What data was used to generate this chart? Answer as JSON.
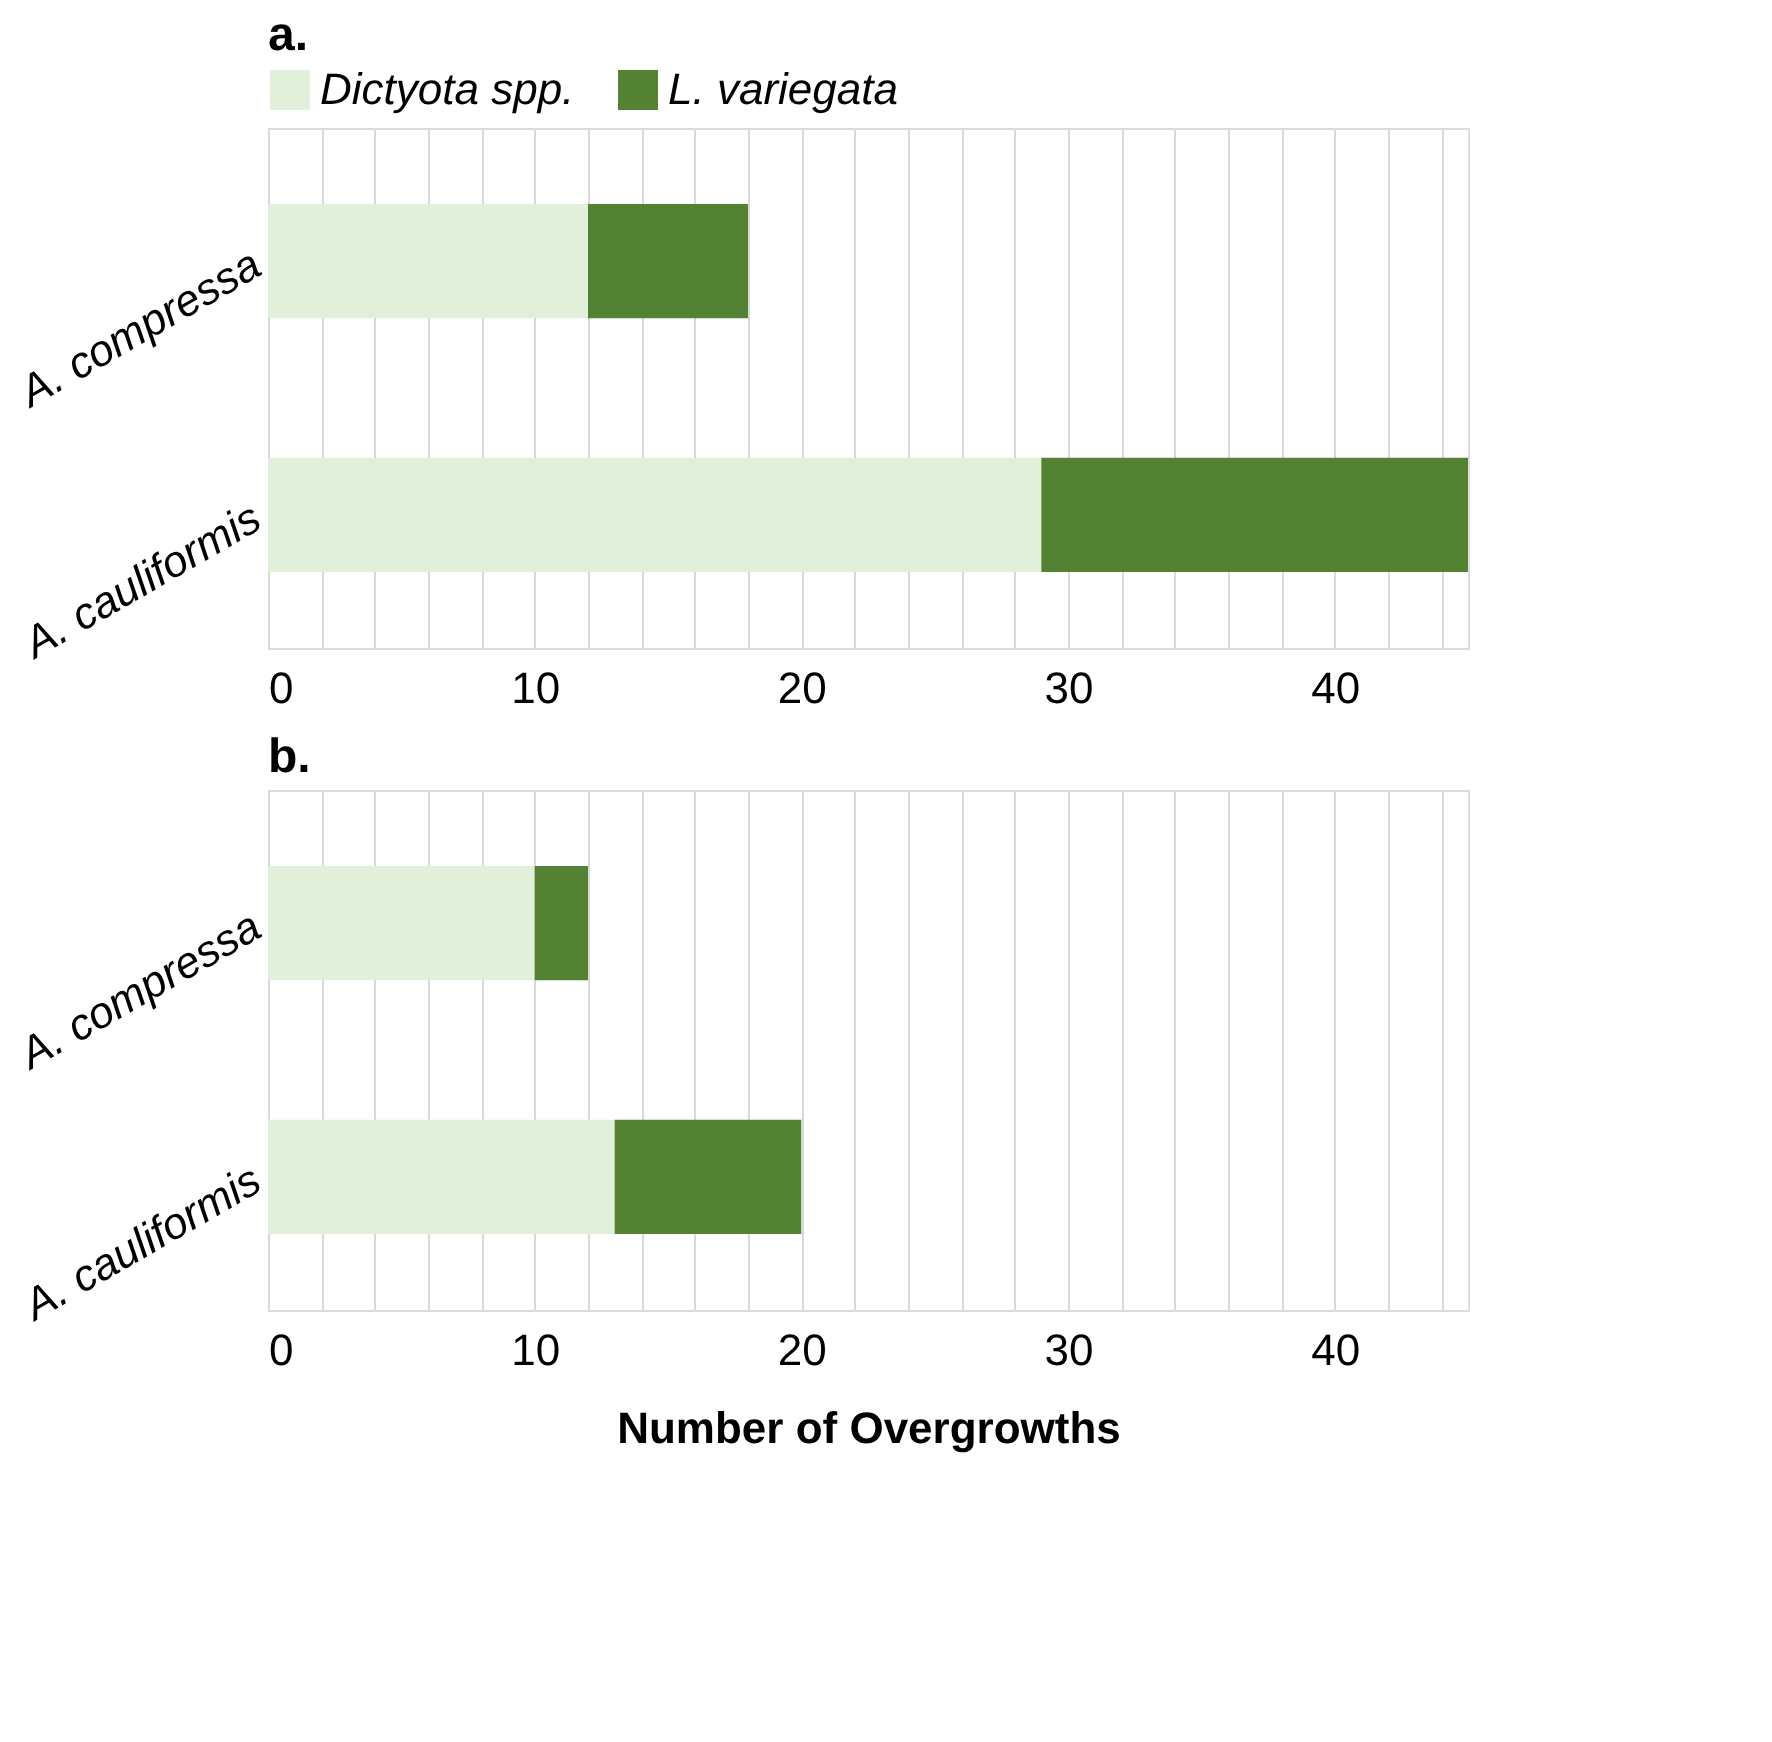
{
  "chart_data": [
    {
      "type": "bar",
      "orientation": "horizontal",
      "stacked": true,
      "title": "a.",
      "categories": [
        "A. compressa",
        "A. cauliformis"
      ],
      "series": [
        {
          "name": "Dictyota spp.",
          "color": "#e2efda",
          "values": [
            12,
            29
          ]
        },
        {
          "name": "L. variegata",
          "color": "#548235",
          "values": [
            6,
            16
          ]
        }
      ],
      "xlim": [
        0,
        45
      ],
      "xticks": [
        0,
        {
          "value": 2,
          "label": null
        },
        {
          "value": 4,
          "label": null
        },
        {
          "value": 6,
          "label": null
        },
        {
          "value": 8,
          "label": null
        },
        10,
        {
          "value": 12,
          "label": null
        },
        {
          "value": 14,
          "label": null
        },
        {
          "value": 16,
          "label": null
        },
        {
          "value": 18,
          "label": null
        },
        20,
        {
          "value": 22,
          "label": null
        },
        {
          "value": 24,
          "label": null
        },
        {
          "value": 26,
          "label": null
        },
        {
          "value": 28,
          "label": null
        },
        30,
        {
          "value": 32,
          "label": null
        },
        {
          "value": 34,
          "label": null
        },
        {
          "value": 36,
          "label": null
        },
        {
          "value": 38,
          "label": null
        },
        40,
        {
          "value": 42,
          "label": null
        },
        {
          "value": 44,
          "label": null
        }
      ],
      "grid": "x",
      "legend": "top"
    },
    {
      "type": "bar",
      "orientation": "horizontal",
      "stacked": true,
      "title": "b.",
      "xlabel": "Number of Overgrowths",
      "categories": [
        "A. compressa",
        "A. cauliformis"
      ],
      "series": [
        {
          "color": "#e2efda",
          "values": [
            10,
            13
          ]
        },
        {
          "color": "#548235",
          "values": [
            2,
            7
          ]
        }
      ],
      "xlim": [
        0,
        45
      ],
      "xticks": [
        0,
        {
          "value": 2,
          "label": null
        },
        {
          "value": 4,
          "label": null
        },
        {
          "value": 6,
          "label": null
        },
        {
          "value": 8,
          "label": null
        },
        10,
        {
          "value": 12,
          "label": null
        },
        {
          "value": 14,
          "label": null
        },
        {
          "value": 16,
          "label": null
        },
        {
          "value": 18,
          "label": null
        },
        20,
        {
          "value": 22,
          "label": null
        },
        {
          "value": 24,
          "label": null
        },
        {
          "value": 26,
          "label": null
        },
        {
          "value": 28,
          "label": null
        },
        30,
        {
          "value": 32,
          "label": null
        },
        {
          "value": 34,
          "label": null
        },
        {
          "value": 36,
          "label": null
        },
        {
          "value": 38,
          "label": null
        },
        40,
        {
          "value": 42,
          "label": null
        },
        {
          "value": 44,
          "label": null
        }
      ],
      "grid": "x",
      "legend": false
    }
  ]
}
